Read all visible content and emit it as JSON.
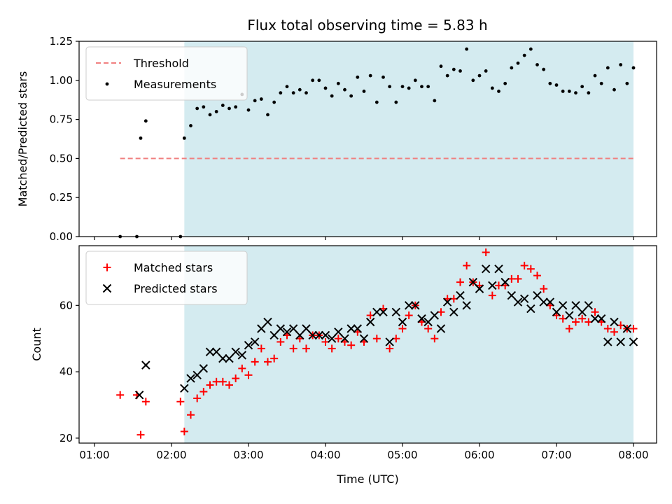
{
  "chart_data": [
    {
      "type": "scatter",
      "title": "Flux total observing time = 5.83 h",
      "xlabel": "",
      "ylabel": "Matched/Predicted stars",
      "xlim": [
        "00:48",
        "08:18"
      ],
      "ylim": [
        0,
        1.25
      ],
      "x_ticks_labeled": false,
      "x_ticks": [
        "01:00",
        "02:00",
        "03:00",
        "04:00",
        "05:00",
        "06:00",
        "07:00",
        "08:00"
      ],
      "y_ticks": [
        "0.00",
        "0.25",
        "0.50",
        "0.75",
        "1.00",
        "1.25"
      ],
      "y_tick_values": [
        0,
        0.25,
        0.5,
        0.75,
        1.0,
        1.25
      ],
      "shaded_span": {
        "x_start": "02:10",
        "x_end": "08:00",
        "color": "#d4ebf0"
      },
      "grid": false,
      "legend_position": "top-left",
      "series": [
        {
          "name": "Threshold",
          "kind": "dashed-line",
          "color": "#f08080",
          "x": [
            "01:20",
            "08:00"
          ],
          "y": [
            0.5,
            0.5
          ]
        },
        {
          "name": "Measurements",
          "kind": "dots",
          "color": "#000000",
          "x": [
            "01:20",
            "01:33",
            "01:36",
            "01:40",
            "02:07",
            "02:10",
            "02:15",
            "02:20",
            "02:25",
            "02:30",
            "02:35",
            "02:40",
            "02:45",
            "02:50",
            "02:55",
            "03:00",
            "03:05",
            "03:10",
            "03:15",
            "03:20",
            "03:25",
            "03:30",
            "03:35",
            "03:40",
            "03:45",
            "03:50",
            "03:55",
            "04:00",
            "04:05",
            "04:10",
            "04:15",
            "04:20",
            "04:25",
            "04:30",
            "04:35",
            "04:40",
            "04:45",
            "04:50",
            "04:55",
            "05:00",
            "05:05",
            "05:10",
            "05:15",
            "05:20",
            "05:25",
            "05:30",
            "05:35",
            "05:40",
            "05:45",
            "05:50",
            "05:55",
            "06:00",
            "06:05",
            "06:10",
            "06:15",
            "06:20",
            "06:25",
            "06:30",
            "06:35",
            "06:40",
            "06:45",
            "06:50",
            "06:55",
            "07:00",
            "07:05",
            "07:10",
            "07:15",
            "07:20",
            "07:25",
            "07:30",
            "07:35",
            "07:40",
            "07:45",
            "07:50",
            "07:55",
            "08:00"
          ],
          "y": [
            0.0,
            0.0,
            0.63,
            0.74,
            0.0,
            0.63,
            0.71,
            0.82,
            0.83,
            0.78,
            0.8,
            0.84,
            0.82,
            0.83,
            0.91,
            0.81,
            0.87,
            0.88,
            0.78,
            0.86,
            0.92,
            0.96,
            0.92,
            0.94,
            0.92,
            1.0,
            1.0,
            0.95,
            0.9,
            0.98,
            0.94,
            0.9,
            1.02,
            0.93,
            1.03,
            0.86,
            1.02,
            0.96,
            0.86,
            0.96,
            0.95,
            1.0,
            0.96,
            0.96,
            0.87,
            1.09,
            1.03,
            1.07,
            1.06,
            1.2,
            1.0,
            1.03,
            1.06,
            0.95,
            0.93,
            0.98,
            1.08,
            1.11,
            1.16,
            1.2,
            1.1,
            1.07,
            0.98,
            0.97,
            0.93,
            0.93,
            0.92,
            0.96,
            0.92,
            1.03,
            0.98,
            1.08,
            0.94,
            1.1,
            0.98,
            1.08
          ]
        }
      ]
    },
    {
      "type": "scatter",
      "title": "",
      "xlabel": "Time (UTC)",
      "ylabel": "Count",
      "xlim": [
        "00:48",
        "08:18"
      ],
      "ylim": [
        18.5,
        78
      ],
      "x_ticks": [
        "01:00",
        "02:00",
        "03:00",
        "04:00",
        "05:00",
        "06:00",
        "07:00",
        "08:00"
      ],
      "y_ticks": [
        "20",
        "40",
        "60"
      ],
      "y_tick_values": [
        20,
        40,
        60
      ],
      "shaded_span": {
        "x_start": "02:10",
        "x_end": "08:00",
        "color": "#d4ebf0"
      },
      "grid": false,
      "legend_position": "top-left",
      "series": [
        {
          "name": "Matched stars",
          "kind": "plus",
          "color": "#ff0000",
          "x": [
            "01:20",
            "01:33",
            "01:36",
            "01:40",
            "02:07",
            "02:10",
            "02:15",
            "02:20",
            "02:25",
            "02:30",
            "02:35",
            "02:40",
            "02:45",
            "02:50",
            "02:55",
            "03:00",
            "03:05",
            "03:10",
            "03:15",
            "03:20",
            "03:25",
            "03:30",
            "03:35",
            "03:40",
            "03:45",
            "03:50",
            "03:55",
            "04:00",
            "04:05",
            "04:10",
            "04:15",
            "04:20",
            "04:25",
            "04:30",
            "04:35",
            "04:40",
            "04:45",
            "04:50",
            "04:55",
            "05:00",
            "05:05",
            "05:10",
            "05:15",
            "05:20",
            "05:25",
            "05:30",
            "05:35",
            "05:40",
            "05:45",
            "05:50",
            "05:55",
            "06:00",
            "06:05",
            "06:10",
            "06:15",
            "06:20",
            "06:25",
            "06:30",
            "06:35",
            "06:40",
            "06:45",
            "06:50",
            "06:55",
            "07:00",
            "07:05",
            "07:10",
            "07:15",
            "07:20",
            "07:25",
            "07:30",
            "07:35",
            "07:40",
            "07:45",
            "07:50",
            "07:55",
            "08:00"
          ],
          "y": [
            33,
            33,
            21,
            31,
            31,
            22,
            27,
            32,
            34,
            36,
            37,
            37,
            36,
            38,
            41,
            39,
            43,
            47,
            43,
            44,
            49,
            51,
            47,
            50,
            47,
            51,
            51,
            49,
            47,
            50,
            49,
            48,
            52,
            49,
            57,
            50,
            59,
            47,
            50,
            53,
            57,
            60,
            55,
            53,
            50,
            58,
            62,
            62,
            67,
            72,
            67,
            66,
            76,
            63,
            66,
            66,
            68,
            68,
            72,
            71,
            69,
            65,
            60,
            57,
            56,
            53,
            55,
            56,
            55,
            58,
            55,
            53,
            52,
            54,
            53,
            53
          ]
        },
        {
          "name": "Predicted stars",
          "kind": "x",
          "color": "#000000",
          "x": [
            "01:35",
            "01:40",
            "02:10",
            "02:15",
            "02:20",
            "02:25",
            "02:30",
            "02:35",
            "02:40",
            "02:45",
            "02:50",
            "02:55",
            "03:00",
            "03:05",
            "03:10",
            "03:15",
            "03:20",
            "03:25",
            "03:30",
            "03:35",
            "03:40",
            "03:45",
            "03:50",
            "03:55",
            "04:00",
            "04:05",
            "04:10",
            "04:15",
            "04:20",
            "04:25",
            "04:30",
            "04:35",
            "04:40",
            "04:45",
            "04:50",
            "04:55",
            "05:00",
            "05:05",
            "05:10",
            "05:15",
            "05:20",
            "05:25",
            "05:30",
            "05:35",
            "05:40",
            "05:45",
            "05:50",
            "05:55",
            "06:00",
            "06:05",
            "06:10",
            "06:15",
            "06:20",
            "06:25",
            "06:30",
            "06:35",
            "06:40",
            "06:45",
            "06:50",
            "06:55",
            "07:00",
            "07:05",
            "07:10",
            "07:15",
            "07:20",
            "07:25",
            "07:30",
            "07:35",
            "07:40",
            "07:45",
            "07:50",
            "07:55",
            "08:00"
          ],
          "y": [
            33,
            42,
            35,
            38,
            39,
            41,
            46,
            46,
            44,
            44,
            46,
            45,
            48,
            49,
            53,
            55,
            51,
            53,
            52,
            53,
            51,
            53,
            51,
            51,
            51,
            50,
            52,
            50,
            53,
            53,
            50,
            55,
            58,
            58,
            49,
            58,
            55,
            60,
            60,
            56,
            55,
            57,
            53,
            61,
            58,
            63,
            60,
            67,
            65,
            71,
            66,
            71,
            67,
            63,
            61,
            62,
            59,
            63,
            61,
            61,
            58,
            60,
            57,
            60,
            58,
            60,
            56,
            56,
            49,
            55,
            49,
            53,
            49
          ]
        }
      ]
    }
  ]
}
